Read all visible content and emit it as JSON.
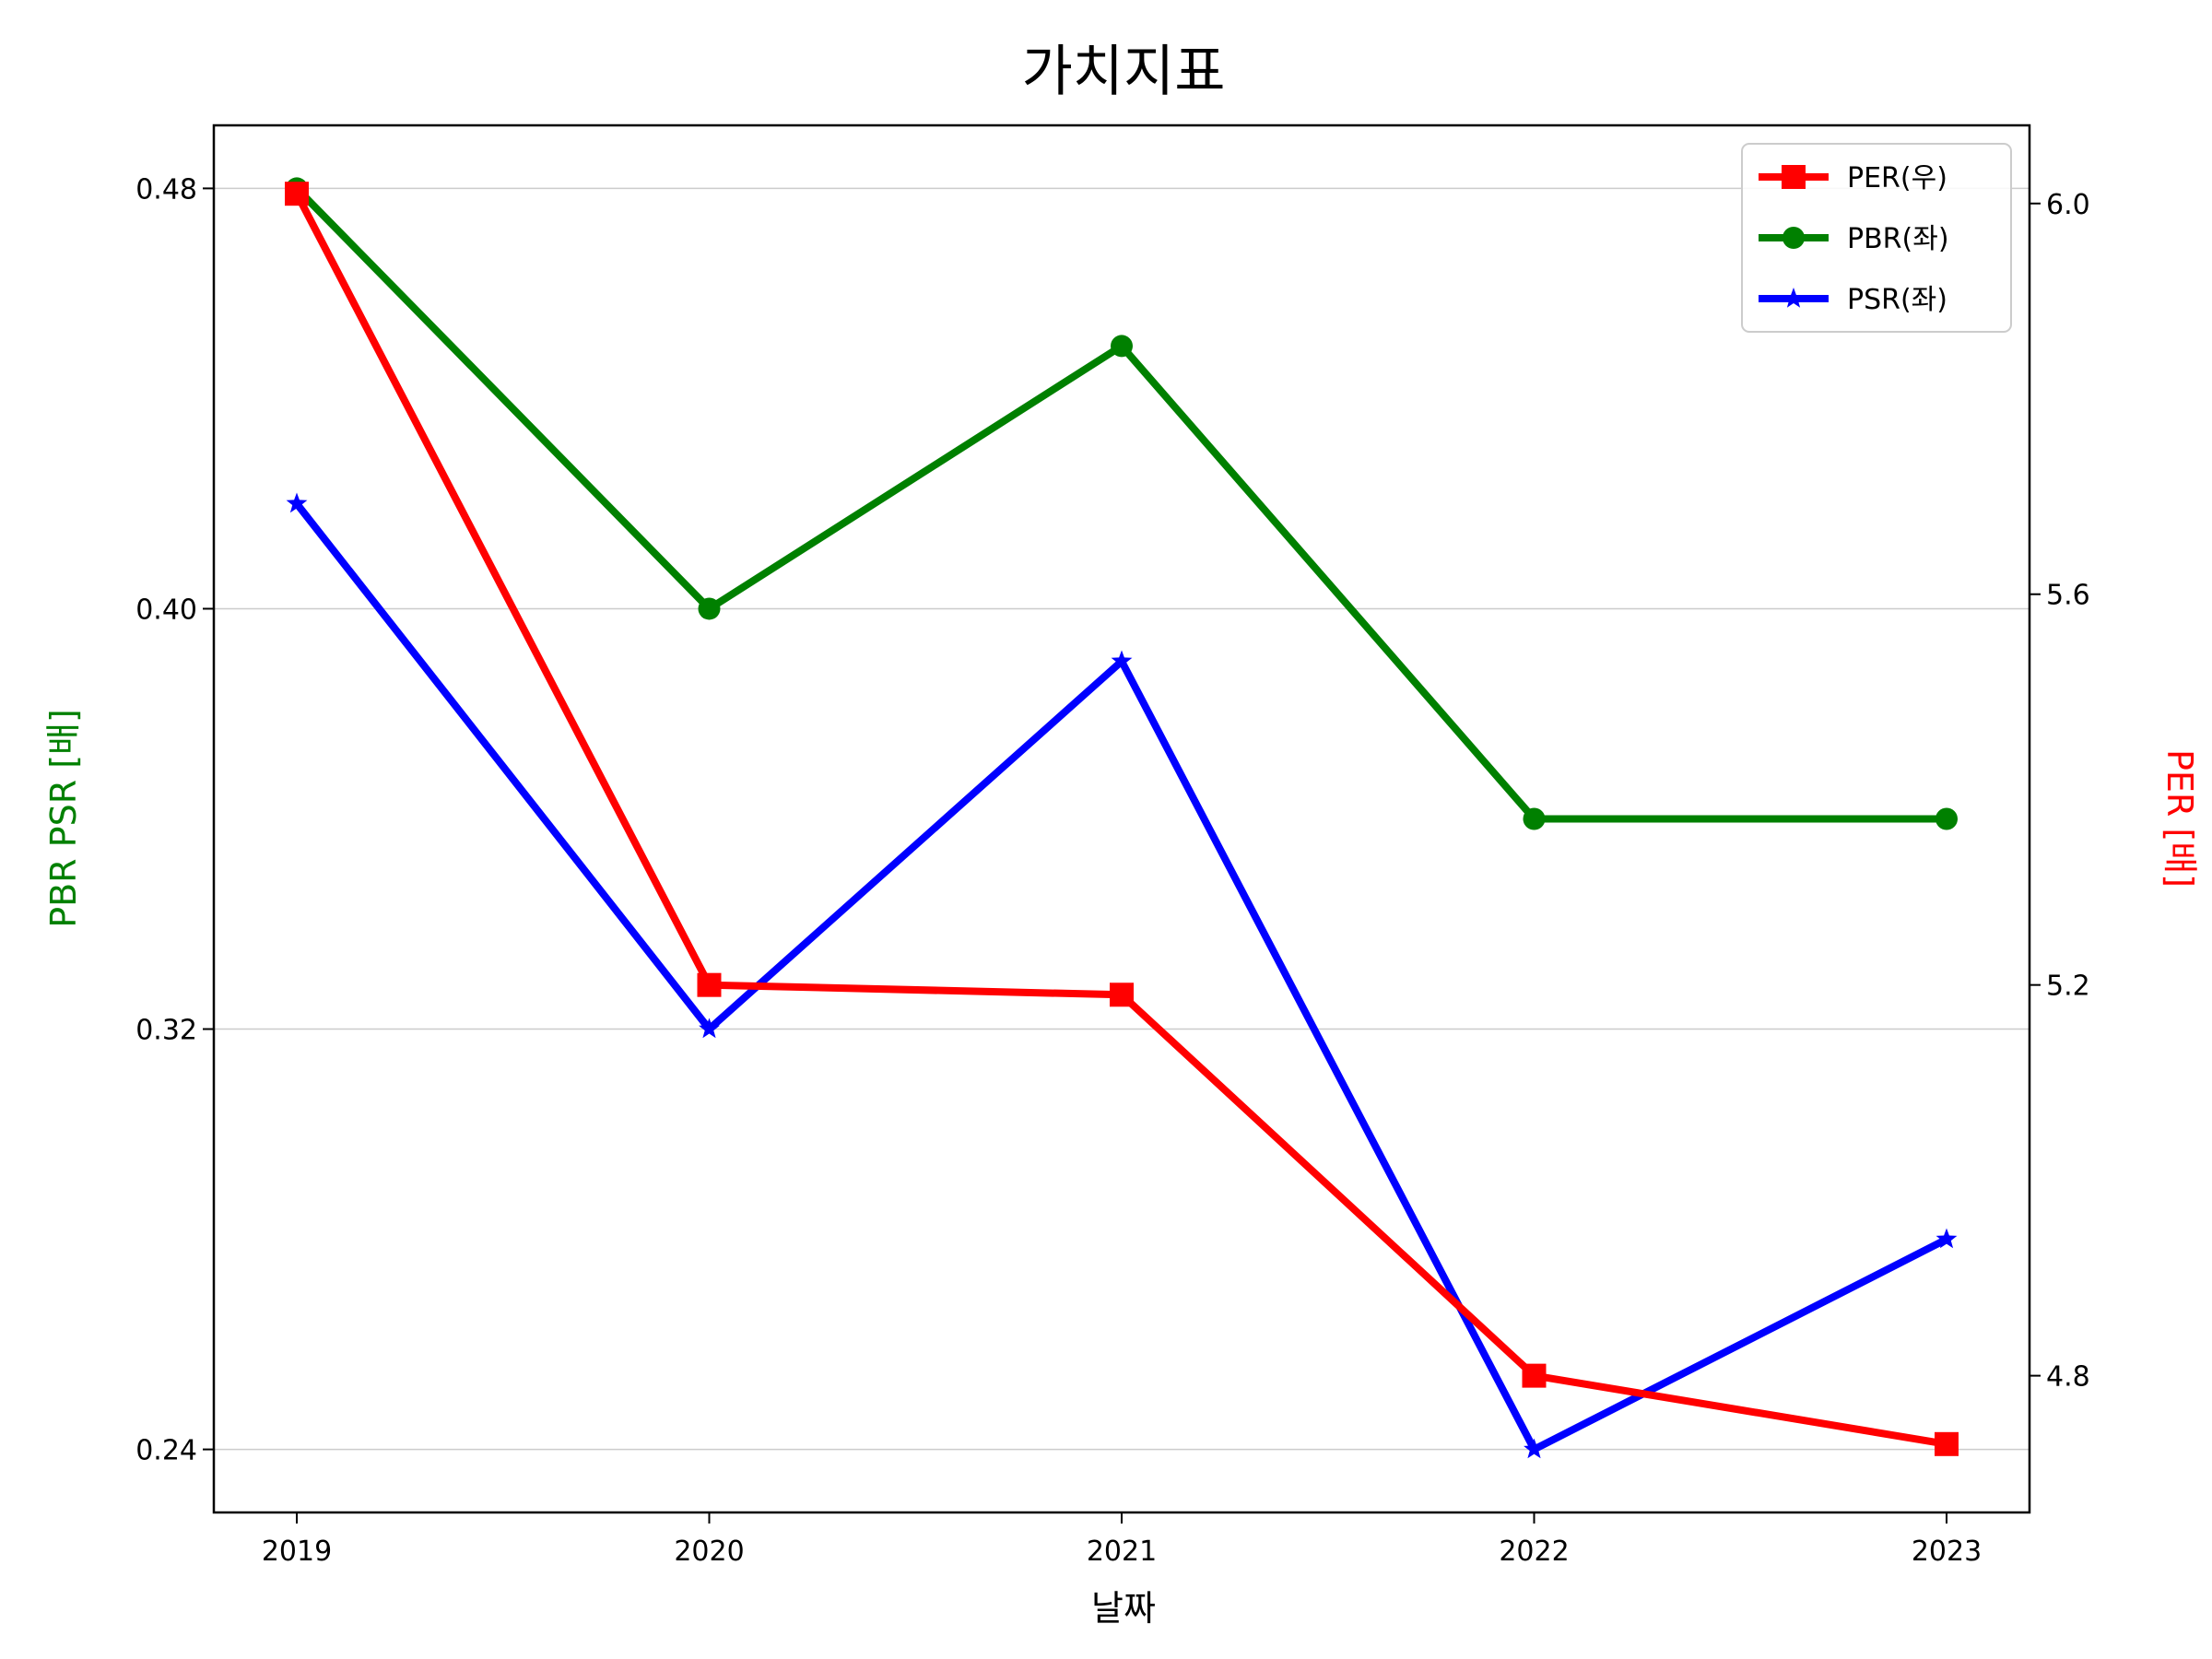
{
  "chart_data": {
    "type": "line",
    "title": "가치지표",
    "xlabel": "날짜",
    "ylabel_left": "PBR PSR [배]",
    "ylabel_right": "PER [배]",
    "categories": [
      "2019",
      "2020",
      "2021",
      "2022",
      "2023"
    ],
    "ylim_left": [
      0.228,
      0.492
    ],
    "yticks_left": [
      "0.24",
      "0.32",
      "0.40",
      "0.48"
    ],
    "ylim_right": [
      4.66,
      6.08
    ],
    "yticks_right": [
      "4.8",
      "5.2",
      "5.6",
      "6.0"
    ],
    "grid": "horizontal (left axis)",
    "legend_position": "top-right",
    "series": [
      {
        "name": "PER(우)",
        "axis": "right",
        "marker": "square",
        "color": "#ff0000",
        "values": [
          6.01,
          5.2,
          5.19,
          4.8,
          4.73
        ]
      },
      {
        "name": "PBR(좌)",
        "axis": "left",
        "marker": "circle",
        "color": "#008000",
        "values": [
          0.48,
          0.4,
          0.45,
          0.36,
          0.36
        ]
      },
      {
        "name": "PSR(좌)",
        "axis": "left",
        "marker": "star",
        "color": "#0000ff",
        "values": [
          0.42,
          0.32,
          0.39,
          0.24,
          0.28
        ]
      }
    ]
  }
}
